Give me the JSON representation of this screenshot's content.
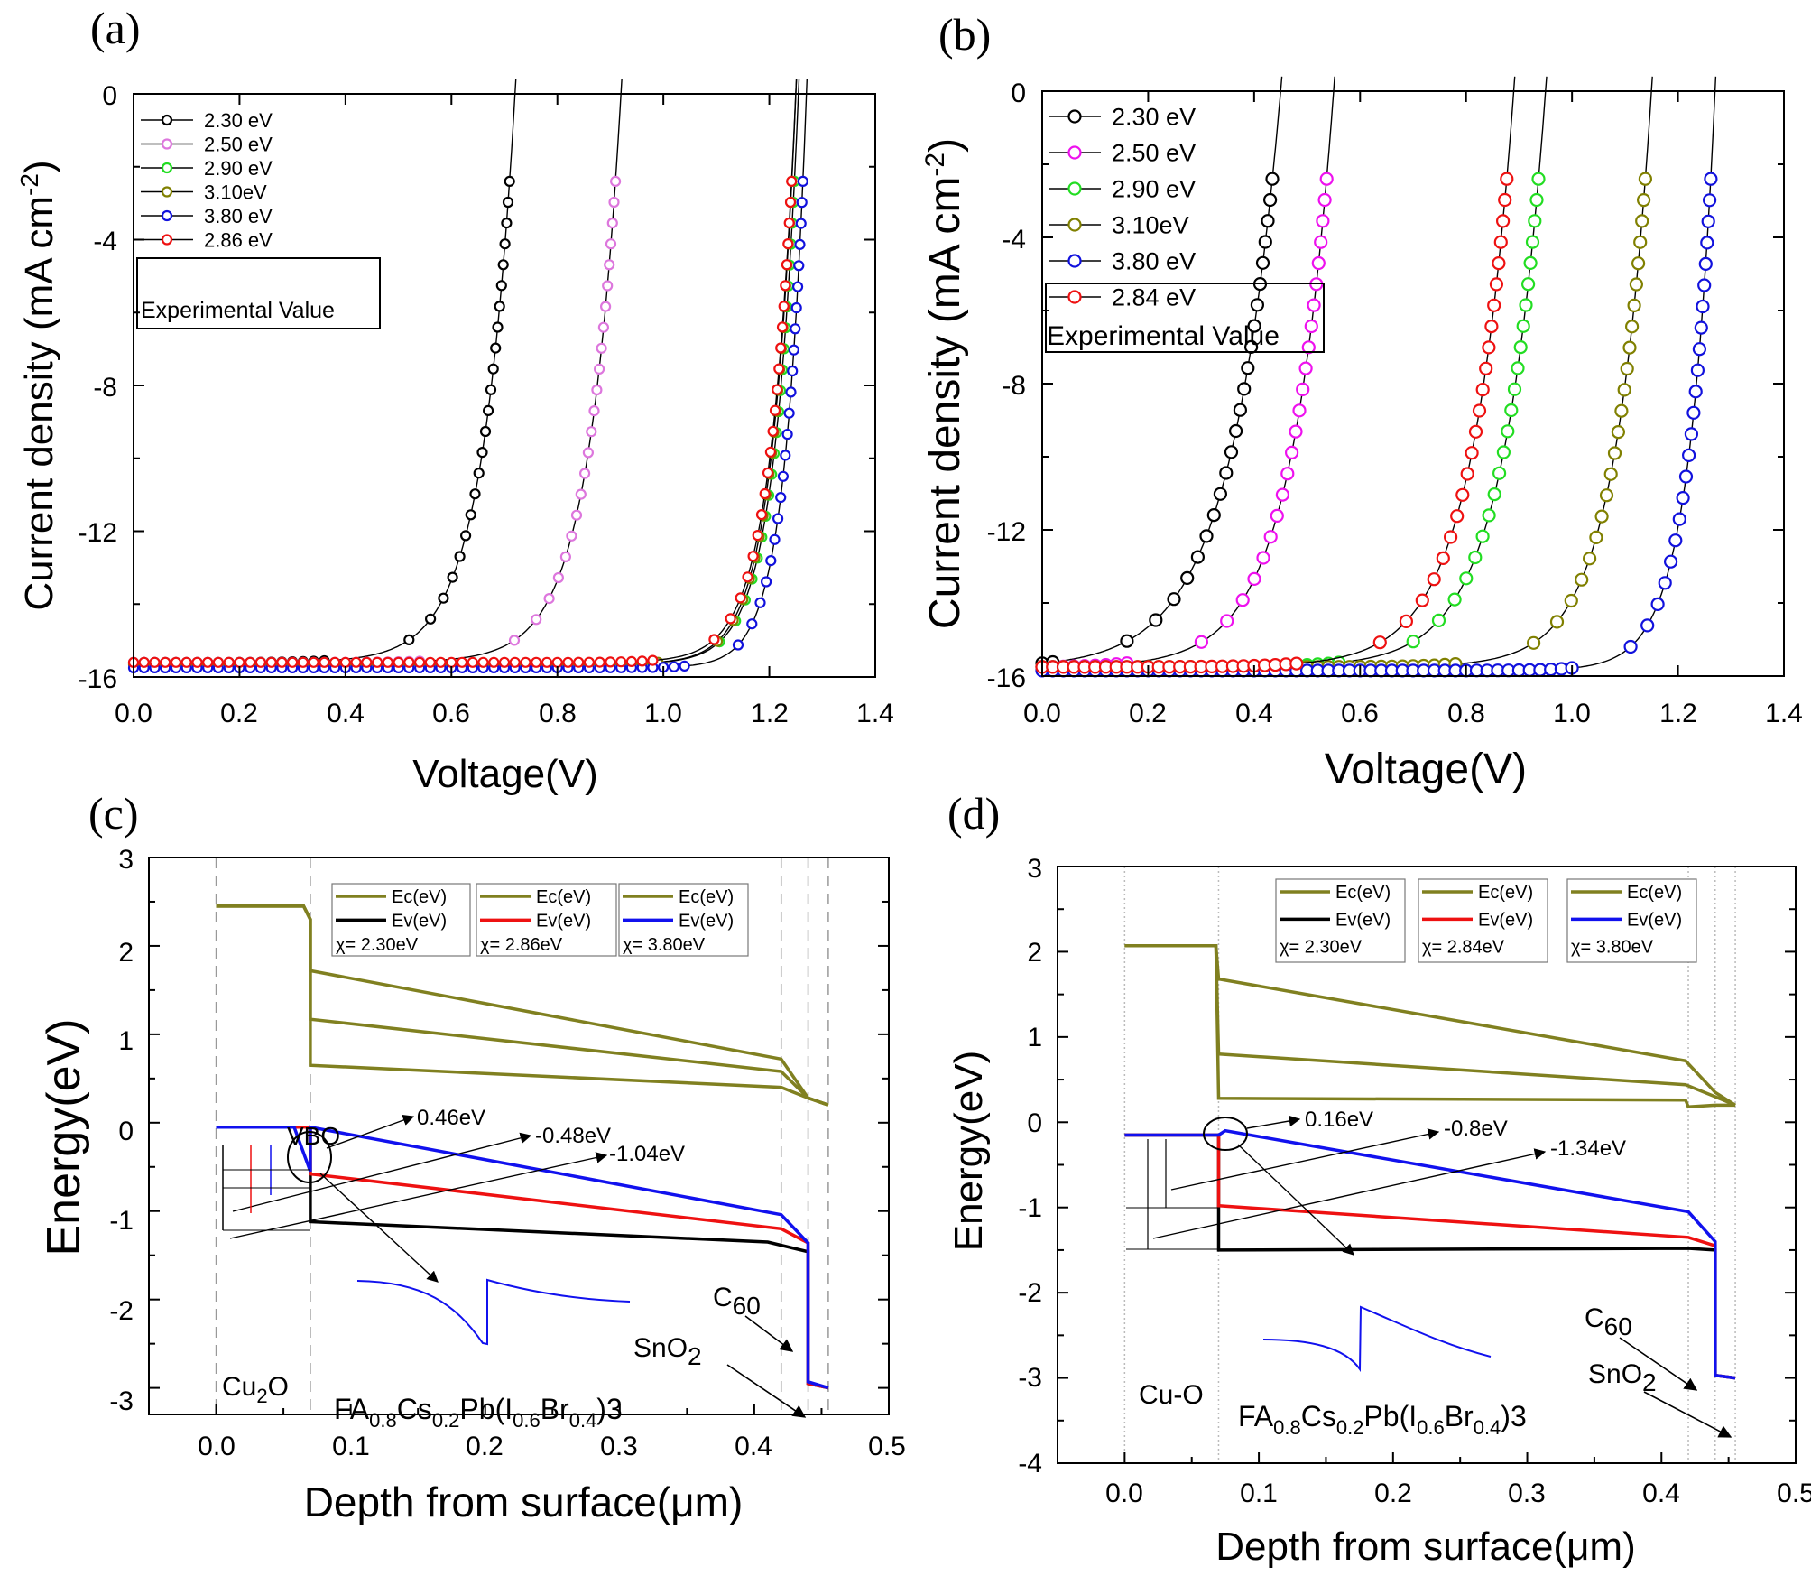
{
  "panel_labels": [
    "(a)",
    "(b)",
    "(c)",
    "(d)"
  ],
  "chart_data": [
    {
      "type": "line",
      "panel": "(a)",
      "xlabel": "Voltage(V)",
      "ylabel": "Current density (mA cm-2)",
      "xlim": [
        0.0,
        1.4
      ],
      "ylim": [
        -16,
        0
      ],
      "xticks": [
        "0.0",
        "0.2",
        "0.4",
        "0.6",
        "0.8",
        "1.0",
        "1.2",
        "1.4"
      ],
      "yticks": [
        "0",
        "-4",
        "-8",
        "-12",
        "-16"
      ],
      "legend": {
        "placement": "top-left",
        "note": "Experimental Value"
      },
      "series": [
        {
          "name": "2.30 eV",
          "color": "#000000",
          "jsc": -15.6,
          "voc": 0.72,
          "v0": 0.36,
          "n": 0.062
        },
        {
          "name": "2.50 eV",
          "color": "#dd77dd",
          "jsc": -15.6,
          "voc": 0.92,
          "v0": 0.54,
          "n": 0.062
        },
        {
          "name": "2.90 eV",
          "color": "#22dd22",
          "jsc": -15.65,
          "voc": 1.255,
          "v0": 0.98,
          "n": 0.046
        },
        {
          "name": "3.10eV",
          "color": "#808000",
          "jsc": -15.65,
          "voc": 1.25,
          "v0": 0.99,
          "n": 0.046
        },
        {
          "name": "3.80 eV",
          "color": "#1111dd",
          "jsc": -15.75,
          "voc": 1.27,
          "v0": 1.04,
          "n": 0.04
        },
        {
          "name": "2.86 eV",
          "color": "#ee1111",
          "jsc": -15.6,
          "voc": 1.25,
          "v0": 0.98,
          "n": 0.048
        }
      ]
    },
    {
      "type": "line",
      "panel": "(b)",
      "xlabel": "Voltage(V)",
      "ylabel": "Current density (mA cm-2)",
      "xlim": [
        0.0,
        1.4
      ],
      "ylim": [
        -16,
        0
      ],
      "xticks": [
        "0.0",
        "0.2",
        "0.4",
        "0.6",
        "0.8",
        "1.0",
        "1.2",
        "1.4"
      ],
      "yticks": [
        "0",
        "-4",
        "-8",
        "-12",
        "-16"
      ],
      "legend": {
        "placement": "top-left",
        "note": "Experimental Value"
      },
      "series": [
        {
          "name": "2.30 eV",
          "color": "#000000",
          "jsc": -15.65,
          "voc": 0.45,
          "v0": 0.02,
          "n": 0.095
        },
        {
          "name": "2.50 eV",
          "color": "#ee11ee",
          "jsc": -15.75,
          "voc": 0.55,
          "v0": 0.16,
          "n": 0.08
        },
        {
          "name": "2.90 eV",
          "color": "#22dd22",
          "jsc": -15.75,
          "voc": 0.95,
          "v0": 0.56,
          "n": 0.08
        },
        {
          "name": "3.10eV",
          "color": "#808000",
          "jsc": -15.75,
          "voc": 1.15,
          "v0": 0.78,
          "n": 0.07
        },
        {
          "name": "3.80 eV",
          "color": "#1111dd",
          "jsc": -15.85,
          "voc": 1.27,
          "v0": 1.0,
          "n": 0.05
        },
        {
          "name": "2.84 eV",
          "color": "#ee1111",
          "jsc": -15.75,
          "voc": 0.89,
          "v0": 0.48,
          "n": 0.08
        }
      ]
    },
    {
      "type": "line",
      "panel": "(c)",
      "xlabel": "Depth from surface(μm)",
      "ylabel": "Energy(eV)",
      "xlim": [
        -0.05,
        0.5
      ],
      "ylim": [
        -3.3,
        3.0
      ],
      "xticks": [
        "0.0",
        "0.1",
        "0.2",
        "0.3",
        "0.4",
        "0.5"
      ],
      "yticks": [
        "3",
        "2",
        "1",
        "0",
        "-1",
        "-2",
        "-3"
      ],
      "layers": {
        "htl": "Cu2O",
        "absorber": "FA0.8Cs0.2Pb(I0.6Br0.4)3",
        "etl1": "C60",
        "etl2": "SnO2"
      },
      "boundaries": [
        0.0,
        0.07,
        0.42,
        0.44,
        0.455
      ],
      "annotations": [
        "VBO",
        "0.46eV",
        "-0.48eV",
        "-1.04eV"
      ],
      "legend_groups": [
        {
          "ec": "Ec(eV)",
          "ev": "Ev(eV)",
          "chi": "χ= 2.30eV",
          "ev_color": "#000000"
        },
        {
          "ec": "Ec(eV)",
          "ev": "Ev(eV)",
          "chi": "χ= 2.86eV",
          "ev_color": "#ee1111"
        },
        {
          "ec": "Ec(eV)",
          "ev": "Ev(eV)",
          "chi": "χ= 3.80eV",
          "ev_color": "#1111ee"
        }
      ],
      "ec_color": "#808020",
      "ec_curves": [
        [
          [
            0,
            2.45
          ],
          [
            0.065,
            2.45
          ],
          [
            0.07,
            2.3
          ],
          [
            0.07,
            1.72
          ],
          [
            0.42,
            0.72
          ],
          [
            0.44,
            0.28
          ],
          [
            0.455,
            0.2
          ]
        ],
        [
          [
            0,
            2.45
          ],
          [
            0.065,
            2.45
          ],
          [
            0.07,
            2.3
          ],
          [
            0.07,
            1.17
          ],
          [
            0.42,
            0.58
          ],
          [
            0.44,
            0.28
          ],
          [
            0.455,
            0.2
          ]
        ],
        [
          [
            0,
            2.45
          ],
          [
            0.065,
            2.45
          ],
          [
            0.07,
            2.3
          ],
          [
            0.07,
            0.65
          ],
          [
            0.42,
            0.4
          ],
          [
            0.44,
            0.28
          ],
          [
            0.455,
            0.2
          ]
        ]
      ],
      "ev_curves": [
        {
          "color": "#000000",
          "points": [
            [
              0,
              -0.05
            ],
            [
              0.07,
              -0.05
            ],
            [
              0.07,
              -1.12
            ],
            [
              0.41,
              -1.35
            ],
            [
              0.44,
              -1.46
            ],
            [
              0.44,
              -2.95
            ],
            [
              0.455,
              -3.0
            ]
          ]
        },
        {
          "color": "#ee1111",
          "points": [
            [
              0,
              -0.05
            ],
            [
              0.07,
              -0.05
            ],
            [
              0.07,
              -0.58
            ],
            [
              0.42,
              -1.2
            ],
            [
              0.44,
              -1.36
            ],
            [
              0.44,
              -2.95
            ],
            [
              0.455,
              -3.0
            ]
          ]
        },
        {
          "color": "#1111ee",
          "points": [
            [
              0,
              -0.05
            ],
            [
              0.058,
              -0.05
            ],
            [
              0.07,
              -0.55
            ],
            [
              0.07,
              -0.05
            ],
            [
              0.42,
              -1.04
            ],
            [
              0.44,
              -1.36
            ],
            [
              0.44,
              -2.93
            ],
            [
              0.455,
              -3.0
            ]
          ]
        }
      ]
    },
    {
      "type": "line",
      "panel": "(d)",
      "xlabel": "Depth from surface(μm)",
      "ylabel": "Energy(eV)",
      "xlim": [
        -0.05,
        0.5
      ],
      "ylim": [
        -4,
        3
      ],
      "xticks": [
        "0.0",
        "0.1",
        "0.2",
        "0.3",
        "0.4",
        "0.5"
      ],
      "yticks": [
        "3",
        "2",
        "1",
        "0",
        "-1",
        "-2",
        "-3",
        "-4"
      ],
      "layers": {
        "htl": "Cu-O",
        "absorber": "FA0.8Cs0.2Pb(I0.6Br0.4)3",
        "etl1": "C60",
        "etl2": "SnO2"
      },
      "boundaries": [
        0.0,
        0.07,
        0.42,
        0.44,
        0.455
      ],
      "annotations": [
        "0.16eV",
        "-0.8eV",
        "-1.34eV"
      ],
      "legend_groups": [
        {
          "ec": "Ec(eV)",
          "ev": "Ev(eV)",
          "chi": "χ= 2.30eV",
          "ev_color": "#000000"
        },
        {
          "ec": "Ec(eV)",
          "ev": "Ev(eV)",
          "chi": "χ= 2.84eV",
          "ev_color": "#ee1111"
        },
        {
          "ec": "Ec(eV)",
          "ev": "Ev(eV)",
          "chi": "χ= 3.80eV",
          "ev_color": "#1111ee"
        }
      ],
      "ec_color": "#808020",
      "ec_curves": [
        [
          [
            0,
            2.07
          ],
          [
            0.068,
            2.07
          ],
          [
            0.07,
            1.68
          ],
          [
            0.418,
            0.72
          ],
          [
            0.44,
            0.35
          ],
          [
            0.455,
            0.2
          ]
        ],
        [
          [
            0,
            2.07
          ],
          [
            0.068,
            2.07
          ],
          [
            0.07,
            0.8
          ],
          [
            0.418,
            0.44
          ],
          [
            0.44,
            0.3
          ],
          [
            0.455,
            0.2
          ]
        ],
        [
          [
            0,
            2.07
          ],
          [
            0.068,
            2.07
          ],
          [
            0.07,
            0.28
          ],
          [
            0.418,
            0.26
          ],
          [
            0.42,
            0.18
          ],
          [
            0.44,
            0.2
          ],
          [
            0.455,
            0.2
          ]
        ]
      ],
      "ev_curves": [
        {
          "color": "#000000",
          "points": [
            [
              0,
              -0.15
            ],
            [
              0.07,
              -0.15
            ],
            [
              0.07,
              -1.5
            ],
            [
              0.42,
              -1.48
            ],
            [
              0.44,
              -1.5
            ],
            [
              0.44,
              -2.97
            ],
            [
              0.455,
              -3.0
            ]
          ]
        },
        {
          "color": "#ee1111",
          "points": [
            [
              0,
              -0.15
            ],
            [
              0.07,
              -0.15
            ],
            [
              0.07,
              -0.98
            ],
            [
              0.42,
              -1.35
            ],
            [
              0.44,
              -1.45
            ],
            [
              0.44,
              -2.97
            ],
            [
              0.455,
              -3.0
            ]
          ]
        },
        {
          "color": "#1111ee",
          "points": [
            [
              0,
              -0.15
            ],
            [
              0.07,
              -0.15
            ],
            [
              0.075,
              -0.1
            ],
            [
              0.42,
              -1.05
            ],
            [
              0.44,
              -1.4
            ],
            [
              0.44,
              -2.97
            ],
            [
              0.455,
              -3.0
            ]
          ]
        }
      ]
    }
  ]
}
